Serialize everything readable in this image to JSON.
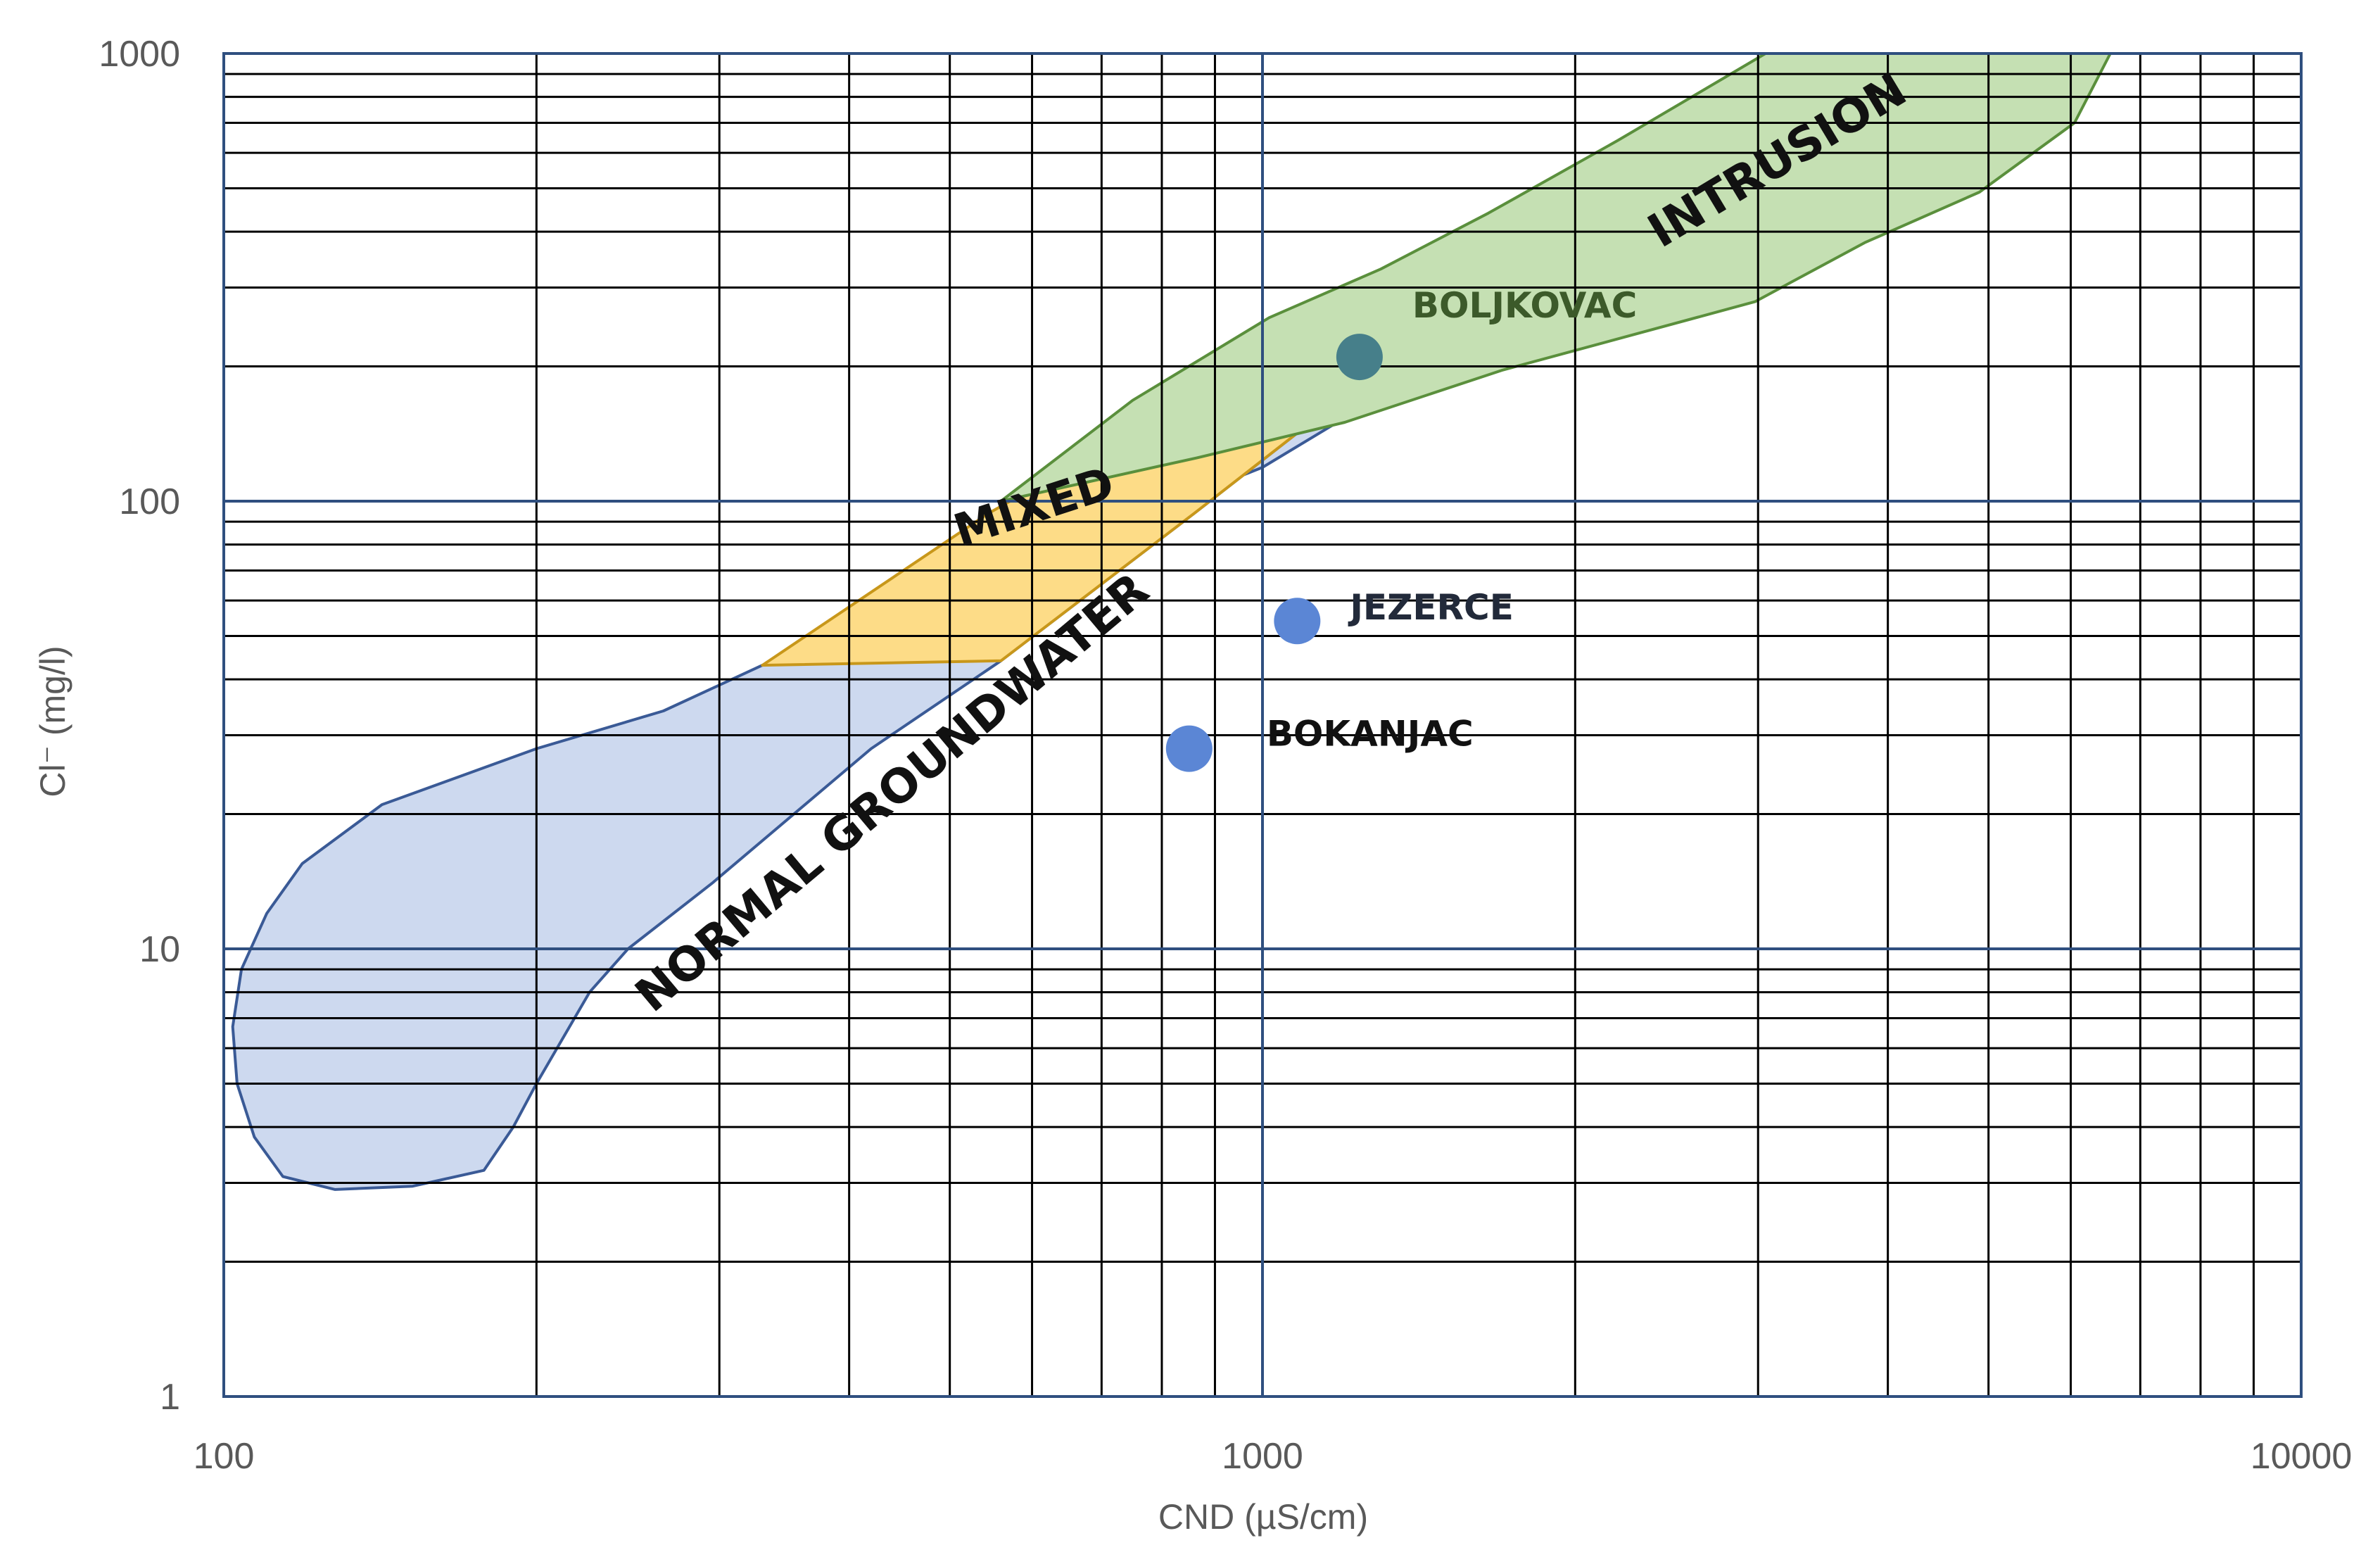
{
  "chart_data": {
    "type": "scatter",
    "xlabel": "CND (µS/cm)",
    "ylabel": "Cl⁻ (mg/l)",
    "x_scale": "log",
    "y_scale": "log",
    "xlim": [
      100,
      10000
    ],
    "ylim": [
      1,
      1000
    ],
    "x_ticks": [
      "100",
      "1000",
      "10000"
    ],
    "y_ticks": [
      "1",
      "10",
      "100",
      "1000"
    ],
    "grid": true,
    "regions": [
      {
        "name": "NORMAL GROUNDWATER",
        "fill": "#cdd9ef",
        "stroke": "#3a5a96",
        "polygon": [
          [
            330,
            43
          ],
          [
            1000,
            119
          ],
          [
            1350,
            181
          ],
          [
            1480,
            251
          ],
          [
            1150,
            159
          ],
          [
            860,
            94
          ],
          [
            560,
            44
          ],
          [
            420,
            28
          ],
          [
            295,
            14
          ],
          [
            245,
            10
          ],
          [
            225,
            8
          ],
          [
            200,
            5
          ],
          [
            190,
            4
          ],
          [
            178,
            3.2
          ],
          [
            152,
            2.95
          ],
          [
            128,
            2.9
          ],
          [
            114,
            3.1
          ],
          [
            107,
            3.8
          ],
          [
            103,
            5
          ],
          [
            102,
            6.7
          ],
          [
            104,
            9
          ],
          [
            110,
            12
          ],
          [
            119,
            15.5
          ],
          [
            142,
            21
          ],
          [
            200,
            28
          ],
          [
            265,
            34
          ],
          [
            330,
            43
          ]
        ]
      },
      {
        "name": "MIXED",
        "fill": "#fddc87",
        "stroke": "#c8971a",
        "polygon": [
          [
            330,
            43
          ],
          [
            545,
            94
          ],
          [
            720,
            135
          ],
          [
            960,
            186
          ],
          [
            1480,
            251
          ],
          [
            1150,
            159
          ],
          [
            860,
            94
          ],
          [
            560,
            44
          ],
          [
            330,
            43
          ]
        ]
      },
      {
        "name": "INTRUSION",
        "fill": "#c5e0b3",
        "stroke": "#5a8f3c",
        "polygon": [
          [
            560,
            100
          ],
          [
            750,
            168
          ],
          [
            1015,
            257
          ],
          [
            1300,
            330
          ],
          [
            1650,
            440
          ],
          [
            2200,
            640
          ],
          [
            3050,
            1000
          ],
          [
            6550,
            1000
          ],
          [
            6050,
            700
          ],
          [
            4900,
            490
          ],
          [
            3800,
            378
          ],
          [
            2980,
            279
          ],
          [
            1700,
            196
          ],
          [
            1200,
            150
          ],
          [
            865,
            125
          ],
          [
            560,
            100
          ]
        ]
      }
    ],
    "series": [
      {
        "name": "BOLJKOVAC",
        "color": "#467f8a",
        "label_color": "#3c5a2a",
        "x": [
          1240
        ],
        "y": [
          210
        ]
      },
      {
        "name": "JEZERCE",
        "color": "#5b86d5",
        "label_color": "#222a3a",
        "x": [
          1080
        ],
        "y": [
          54
        ]
      },
      {
        "name": "BOKANJAC",
        "color": "#5b86d5",
        "label_color": "#111111",
        "x": [
          850
        ],
        "y": [
          28
        ]
      }
    ]
  }
}
